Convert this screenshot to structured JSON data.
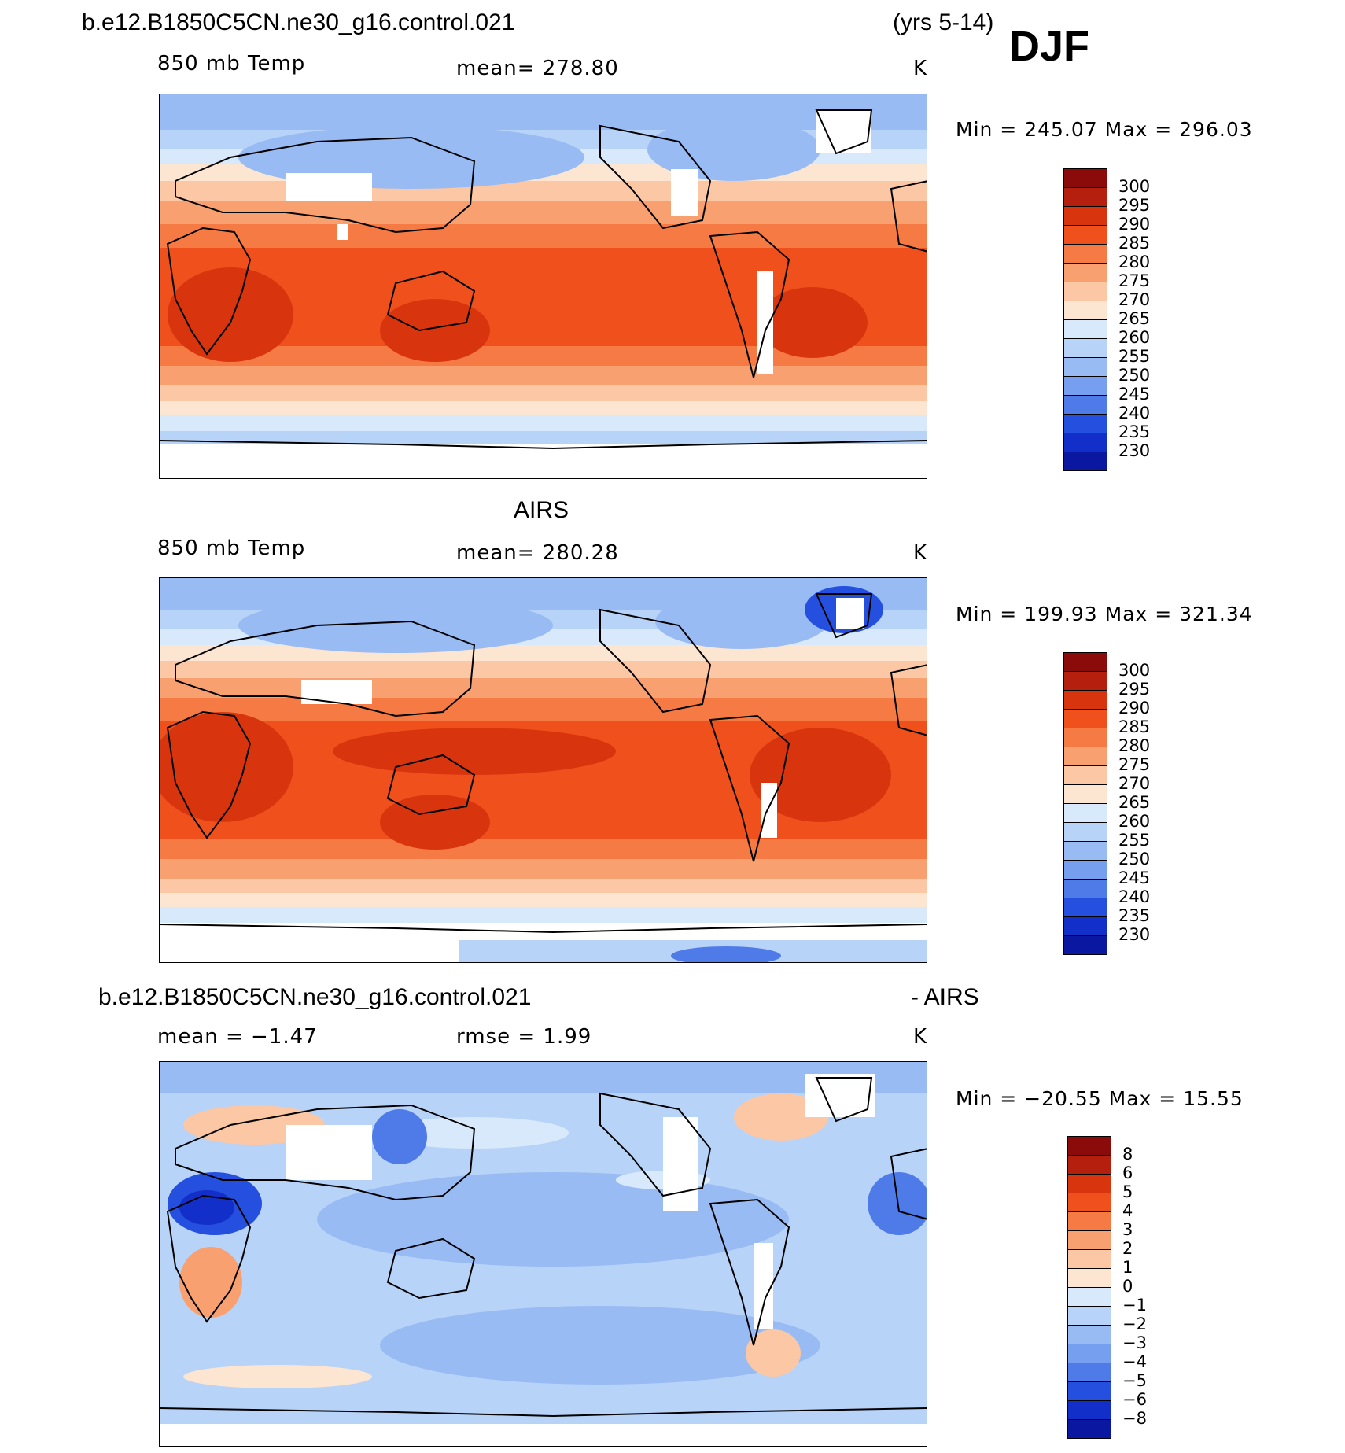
{
  "header": {
    "case_name": "b.e12.B1850C5CN.ne30_g16.control.021",
    "years": "(yrs 5-14)",
    "season": "DJF"
  },
  "panel1": {
    "variable": "850 mb Temp",
    "mean": "mean=  278.80",
    "units": "K",
    "minmax": "Min  =  245.07  Max  =  296.03"
  },
  "panel2": {
    "title": "AIRS",
    "variable": "850 mb Temp",
    "mean": "mean=  280.28",
    "units": "K",
    "minmax": "Min  =  199.93  Max  =  321.34"
  },
  "panel3": {
    "title_left": "b.e12.B1850C5CN.ne30_g16.control.021",
    "title_right": "- AIRS",
    "mean": "mean  =    −1.47",
    "rmse": "rmse  =     1.99",
    "units": "K",
    "minmax": "Min  =  −20.55  Max  =    15.55"
  },
  "colorbar_temp": {
    "labels": [
      "300",
      "295",
      "290",
      "285",
      "280",
      "275",
      "270",
      "265",
      "260",
      "255",
      "250",
      "245",
      "240",
      "235",
      "230"
    ],
    "colors": [
      "#8b0a0a",
      "#b5200e",
      "#d8350f",
      "#f0511c",
      "#f57a44",
      "#f9a071",
      "#fcc7a4",
      "#fde6d1",
      "#d8e9fb",
      "#b8d3f8",
      "#98bbf4",
      "#779ff0",
      "#4f7be8",
      "#2550df",
      "#1230c9",
      "#0a17a0"
    ]
  },
  "colorbar_diff": {
    "labels": [
      "8",
      "6",
      "5",
      "4",
      "3",
      "2",
      "1",
      "0",
      "−1",
      "−2",
      "−3",
      "−4",
      "−5",
      "−6",
      "−8"
    ],
    "colors": [
      "#8b0a0a",
      "#b5200e",
      "#d8350f",
      "#f0511c",
      "#f57a44",
      "#f9a071",
      "#fcc7a4",
      "#fde6d1",
      "#d8e9fb",
      "#b8d3f8",
      "#98bbf4",
      "#779ff0",
      "#4f7be8",
      "#2550df",
      "#1230c9",
      "#0a17a0"
    ]
  }
}
